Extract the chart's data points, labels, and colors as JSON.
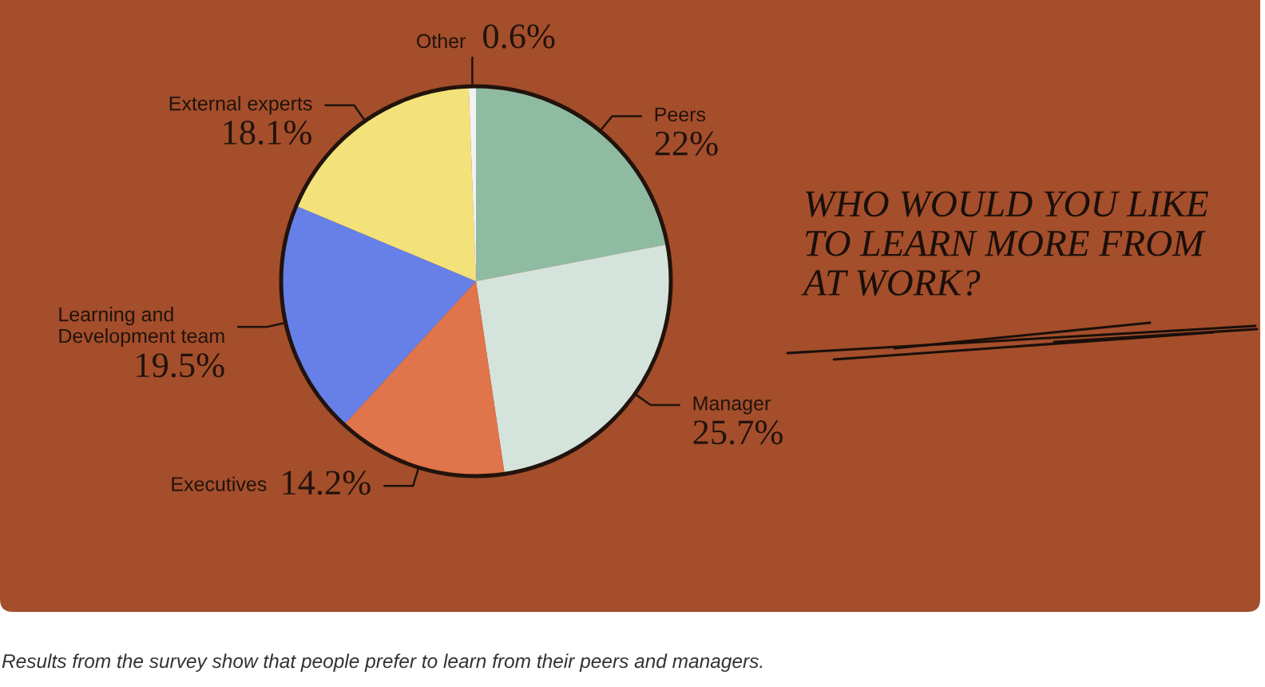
{
  "chart_data": {
    "type": "pie",
    "title": "WHO WOULD YOU LIKE\nTO LEARN MORE FROM\nAT WORK?",
    "categories": [
      "Peers",
      "Manager",
      "Executives",
      "Learning and\nDevelopment team",
      "External experts",
      "Other"
    ],
    "values": [
      22,
      25.7,
      14.2,
      19.5,
      18.1,
      0.6
    ],
    "colors": [
      "#8fbba3",
      "#d4e4dc",
      "#e0744a",
      "#6680e8",
      "#f3e27a",
      "#f2f2f2"
    ],
    "value_labels": [
      "22%",
      "25.7%",
      "14.2%",
      "19.5%",
      "18.1%",
      "0.6%"
    ],
    "annotations": [
      "Results from the survey show that people prefer to learn from their peers and managers."
    ]
  }
}
